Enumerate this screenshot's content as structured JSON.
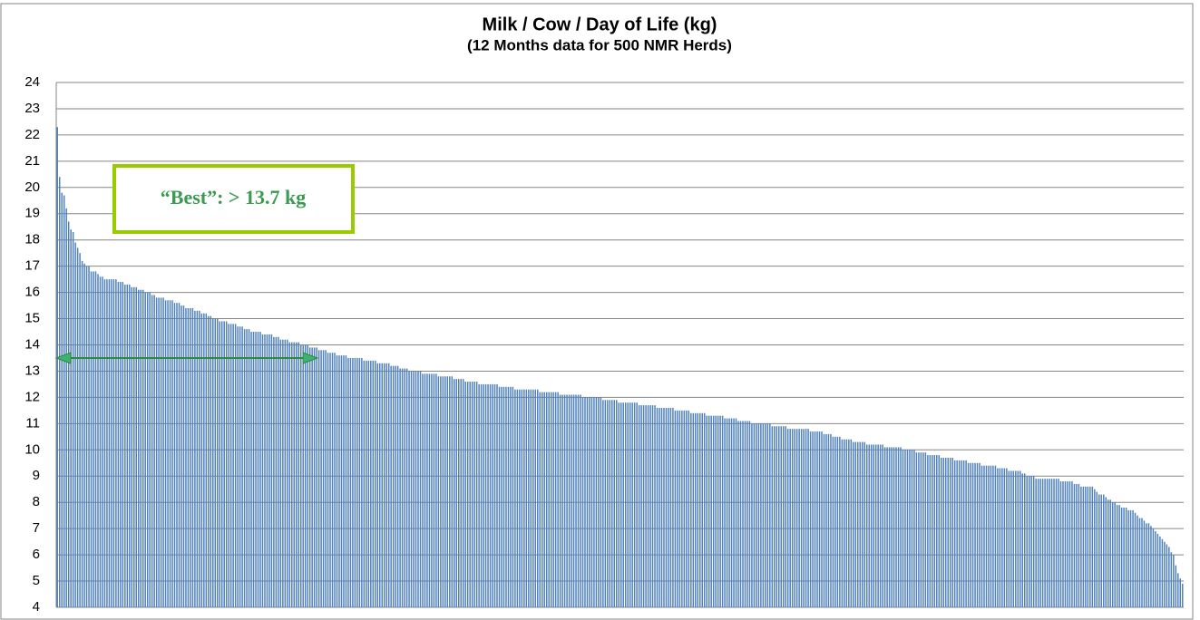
{
  "chart_data": {
    "type": "bar",
    "title": "Milk / Cow / Day of Life (kg)",
    "subtitle": "(12 Months data for 500 NMR Herds)",
    "annotation": "“Best”: > 13.7 kg",
    "color": "#4f81bd",
    "grid": true,
    "ylim": [
      4,
      24
    ],
    "yticks": [
      4,
      5,
      6,
      7,
      8,
      9,
      10,
      11,
      12,
      13,
      14,
      15,
      16,
      17,
      18,
      19,
      20,
      21,
      22,
      23,
      24
    ],
    "values": [
      22.3,
      20.4,
      19.8,
      19.7,
      19.2,
      18.7,
      18.4,
      18.3,
      17.9,
      17.7,
      17.5,
      17.2,
      17.1,
      17.0,
      17.0,
      16.8,
      16.8,
      16.8,
      16.7,
      16.6,
      16.6,
      16.5,
      16.5,
      16.5,
      16.5,
      16.5,
      16.5,
      16.4,
      16.4,
      16.4,
      16.3,
      16.3,
      16.3,
      16.2,
      16.2,
      16.2,
      16.1,
      16.1,
      16.1,
      16.0,
      16.0,
      16.0,
      15.9,
      15.9,
      15.8,
      15.8,
      15.8,
      15.8,
      15.7,
      15.7,
      15.7,
      15.7,
      15.6,
      15.6,
      15.6,
      15.5,
      15.5,
      15.4,
      15.4,
      15.4,
      15.4,
      15.3,
      15.3,
      15.3,
      15.2,
      15.2,
      15.2,
      15.1,
      15.1,
      15.0,
      15.0,
      15.0,
      14.9,
      14.9,
      14.9,
      14.9,
      14.8,
      14.8,
      14.8,
      14.8,
      14.7,
      14.7,
      14.7,
      14.6,
      14.6,
      14.6,
      14.5,
      14.5,
      14.5,
      14.5,
      14.5,
      14.4,
      14.4,
      14.4,
      14.4,
      14.4,
      14.3,
      14.3,
      14.3,
      14.2,
      14.2,
      14.2,
      14.2,
      14.1,
      14.1,
      14.1,
      14.1,
      14.1,
      14.0,
      14.0,
      14.0,
      14.0,
      13.9,
      13.9,
      13.9,
      13.9,
      13.8,
      13.8,
      13.8,
      13.8,
      13.7,
      13.7,
      13.7,
      13.7,
      13.6,
      13.6,
      13.6,
      13.6,
      13.6,
      13.5,
      13.5,
      13.5,
      13.5,
      13.5,
      13.5,
      13.5,
      13.4,
      13.4,
      13.4,
      13.4,
      13.4,
      13.4,
      13.3,
      13.3,
      13.3,
      13.3,
      13.3,
      13.3,
      13.2,
      13.2,
      13.2,
      13.2,
      13.1,
      13.1,
      13.1,
      13.1,
      13.0,
      13.0,
      13.0,
      13.0,
      13.0,
      13.0,
      12.9,
      12.9,
      12.9,
      12.9,
      12.9,
      12.9,
      12.9,
      12.8,
      12.8,
      12.8,
      12.8,
      12.8,
      12.8,
      12.8,
      12.7,
      12.7,
      12.7,
      12.7,
      12.7,
      12.6,
      12.6,
      12.6,
      12.6,
      12.6,
      12.6,
      12.5,
      12.5,
      12.5,
      12.5,
      12.5,
      12.5,
      12.5,
      12.5,
      12.5,
      12.4,
      12.4,
      12.4,
      12.4,
      12.4,
      12.4,
      12.4,
      12.3,
      12.3,
      12.3,
      12.3,
      12.3,
      12.3,
      12.3,
      12.3,
      12.3,
      12.3,
      12.3,
      12.2,
      12.2,
      12.2,
      12.2,
      12.2,
      12.2,
      12.2,
      12.2,
      12.2,
      12.1,
      12.1,
      12.1,
      12.1,
      12.1,
      12.1,
      12.1,
      12.1,
      12.1,
      12.1,
      12.0,
      12.0,
      12.0,
      12.0,
      12.0,
      12.0,
      12.0,
      12.0,
      12.0,
      11.9,
      11.9,
      11.9,
      11.9,
      11.9,
      11.9,
      11.9,
      11.8,
      11.8,
      11.8,
      11.8,
      11.8,
      11.8,
      11.8,
      11.8,
      11.8,
      11.7,
      11.7,
      11.7,
      11.7,
      11.7,
      11.7,
      11.7,
      11.7,
      11.6,
      11.6,
      11.6,
      11.6,
      11.6,
      11.6,
      11.6,
      11.6,
      11.5,
      11.5,
      11.5,
      11.5,
      11.5,
      11.5,
      11.5,
      11.4,
      11.4,
      11.4,
      11.4,
      11.4,
      11.4,
      11.4,
      11.3,
      11.3,
      11.3,
      11.3,
      11.3,
      11.3,
      11.3,
      11.3,
      11.2,
      11.2,
      11.2,
      11.2,
      11.2,
      11.2,
      11.1,
      11.1,
      11.1,
      11.1,
      11.1,
      11.1,
      11.0,
      11.0,
      11.0,
      11.0,
      11.0,
      11.0,
      11.0,
      11.0,
      11.0,
      10.9,
      10.9,
      10.9,
      10.9,
      10.9,
      10.9,
      10.9,
      10.8,
      10.8,
      10.8,
      10.8,
      10.8,
      10.8,
      10.8,
      10.8,
      10.8,
      10.8,
      10.7,
      10.7,
      10.7,
      10.7,
      10.7,
      10.7,
      10.6,
      10.6,
      10.6,
      10.6,
      10.5,
      10.5,
      10.5,
      10.5,
      10.4,
      10.4,
      10.4,
      10.4,
      10.4,
      10.3,
      10.3,
      10.3,
      10.3,
      10.3,
      10.3,
      10.2,
      10.2,
      10.2,
      10.2,
      10.2,
      10.2,
      10.2,
      10.2,
      10.1,
      10.1,
      10.1,
      10.1,
      10.1,
      10.1,
      10.1,
      10.1,
      10.0,
      10.0,
      10.0,
      10.0,
      10.0,
      10.0,
      9.9,
      9.9,
      9.9,
      9.9,
      9.9,
      9.8,
      9.8,
      9.8,
      9.8,
      9.8,
      9.8,
      9.7,
      9.7,
      9.7,
      9.7,
      9.7,
      9.7,
      9.6,
      9.6,
      9.6,
      9.6,
      9.6,
      9.6,
      9.5,
      9.5,
      9.5,
      9.5,
      9.5,
      9.5,
      9.4,
      9.4,
      9.4,
      9.4,
      9.4,
      9.4,
      9.4,
      9.3,
      9.3,
      9.3,
      9.3,
      9.3,
      9.2,
      9.2,
      9.2,
      9.2,
      9.2,
      9.2,
      9.1,
      9.1,
      9.0,
      9.0,
      9.0,
      9.0,
      8.9,
      8.9,
      8.9,
      8.9,
      8.9,
      8.9,
      8.9,
      8.9,
      8.9,
      8.9,
      8.9,
      8.8,
      8.8,
      8.8,
      8.8,
      8.8,
      8.8,
      8.7,
      8.7,
      8.7,
      8.6,
      8.6,
      8.6,
      8.6,
      8.6,
      8.6,
      8.5,
      8.4,
      8.3,
      8.3,
      8.3,
      8.2,
      8.1,
      8.1,
      8.0,
      8.0,
      7.9,
      7.9,
      7.8,
      7.8,
      7.8,
      7.7,
      7.7,
      7.7,
      7.6,
      7.5,
      7.4,
      7.4,
      7.3,
      7.2,
      7.2,
      7.1,
      7.0,
      6.9,
      6.8,
      6.7,
      6.6,
      6.5,
      6.4,
      6.3,
      6.1,
      6.0,
      5.6,
      5.3,
      5.1,
      4.9
    ]
  }
}
